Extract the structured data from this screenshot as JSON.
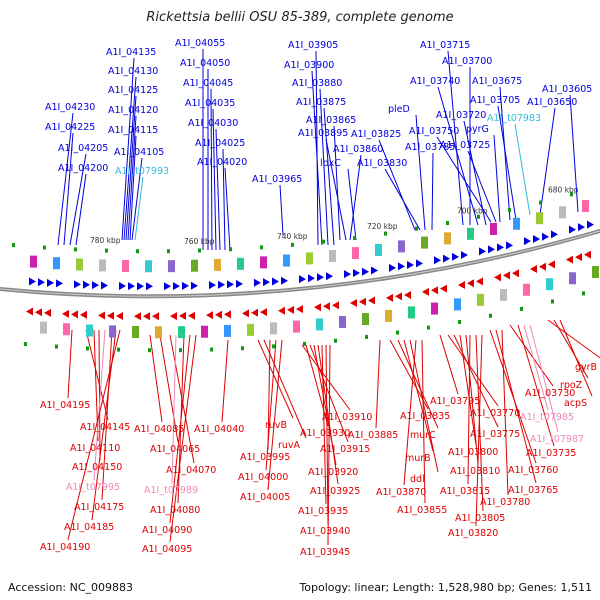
{
  "title": "Rickettsia bellii OSU 85-389, complete genome",
  "footer": {
    "accession": "Accession: NC_009883",
    "summary": "Topology: linear; Length: 1,528,980 bp; Genes: 1,511"
  },
  "colors": {
    "forward": "#0000dd",
    "reverse": "#dd0000",
    "rna_forward": "#33bbdd",
    "rna_reverse": "#ee88bb",
    "backbone": "#888888"
  },
  "kbp_ticks": [
    "780 kbp",
    "760 kbp",
    "740 kbp",
    "720 kbp",
    "700 kbp",
    "680 kbp"
  ],
  "top_labels": [
    "A1I_04135",
    "A1I_04130",
    "A1I_04125",
    "A1I_04120",
    "A1I_04115",
    "A1I_04105",
    "A1I_t07993",
    "A1I_04230",
    "A1I_04225",
    "A1I_04205",
    "A1I_04200",
    "A1I_04055",
    "A1I_04050",
    "A1I_04045",
    "A1I_04035",
    "A1I_04030",
    "A1I_04025",
    "A1I_04020",
    "A1I_03965",
    "A1I_03905",
    "A1I_03900",
    "A1I_03880",
    "A1I_03875",
    "A1I_03865",
    "A1I_03895",
    "A1I_03860",
    "lpxC",
    "A1I_03825",
    "A1I_03830",
    "pleD",
    "A1I_03785",
    "A1I_03715",
    "A1I_03700",
    "A1I_03740",
    "A1I_03720",
    "A1I_03750",
    "A1I_03725",
    "pyrG",
    "A1I_03675",
    "A1I_03705",
    "A1I_t07983",
    "A1I_03650",
    "A1I_03605"
  ],
  "bottom_labels": [
    "A1I_04195",
    "A1I_04145",
    "A1I_04110",
    "A1I_04150",
    "A1I_t07995",
    "A1I_04175",
    "A1I_04185",
    "A1I_04190",
    "A1I_04085",
    "A1I_04065",
    "A1I_04070",
    "A1I_t07989",
    "A1I_04080",
    "A1I_04090",
    "A1I_04095",
    "A1I_04040",
    "ruvB",
    "ruvA",
    "A1I_03995",
    "A1I_04000",
    "A1I_04005",
    "A1I_03910",
    "A1I_03930",
    "A1I_03915",
    "A1I_03920",
    "A1I_03925",
    "A1I_03935",
    "A1I_03940",
    "A1I_03945",
    "A1I_03885",
    "A1I_03835",
    "murC",
    "murB",
    "ddl",
    "A1I_03870",
    "A1I_03855",
    "A1I_03795",
    "A1I_03770",
    "A1I_03775",
    "A1I_03800",
    "A1I_03810",
    "A1I_03815",
    "A1I_03805",
    "A1I_03820",
    "A1I_03760",
    "A1I_03765",
    "A1I_03780",
    "A1I_03730",
    "A1I_03735",
    "A1I_t07985",
    "A1I_t07987",
    "gyrB",
    "rpoZ",
    "acpS"
  ]
}
